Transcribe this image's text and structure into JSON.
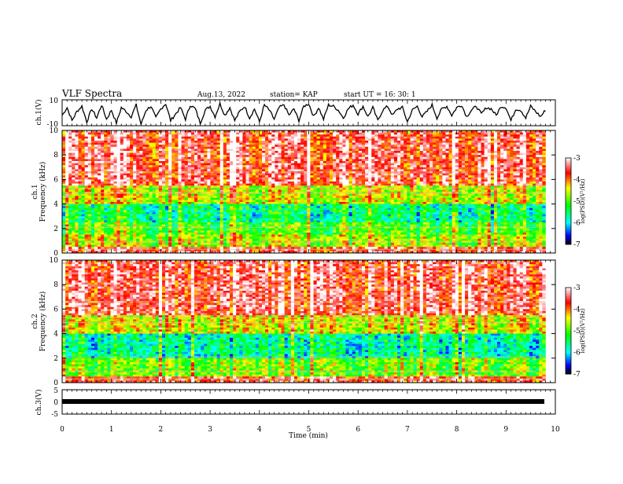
{
  "header": {
    "title": "VLF Spectra",
    "date": "Aug.13, 2022",
    "station": "station= KAP",
    "start": "start  UT =   16: 30: 1"
  },
  "chart_data": [
    {
      "type": "line",
      "panel": "ch1-waveform",
      "ylabel": "ch.1(V)",
      "ylim": [
        -10,
        10
      ],
      "y_tick_labels": [
        "10",
        "-10"
      ],
      "x_range_min": [
        0,
        9.8
      ],
      "series": [
        {
          "values_sampled_every_0_1_min": [
            -2,
            4,
            -6,
            1,
            5,
            -7,
            3,
            -4,
            6,
            -5,
            2,
            -8,
            4,
            1,
            -3,
            6,
            -9,
            2,
            5,
            -4,
            3,
            7,
            -6,
            -1,
            4,
            -5,
            6,
            3,
            -8,
            2,
            5,
            -3,
            7,
            -2,
            4,
            -6,
            1,
            5,
            -4,
            3,
            -7,
            6,
            2,
            -5,
            4,
            6,
            -2,
            3,
            -6,
            5,
            7,
            -3,
            4,
            -5,
            6,
            5,
            2,
            -4,
            3,
            6,
            -1,
            5,
            -3,
            4,
            -6,
            2,
            5,
            -2,
            3,
            4,
            -7,
            2,
            5,
            -3,
            1,
            6,
            -4,
            3,
            5,
            -2,
            4,
            6,
            -3,
            2,
            5,
            -1,
            4,
            3,
            -2,
            5,
            4,
            -6,
            3,
            2,
            -4,
            5,
            1,
            -3,
            2,
            -5,
            -6,
            -4
          ]
        }
      ]
    },
    {
      "type": "heatmap",
      "panel": "ch1-spectrogram",
      "ylabel": "ch.1\nFrequency (kHz)",
      "ylim": [
        0,
        10
      ],
      "y_tick_labels": [
        "0",
        "2",
        "4",
        "6",
        "8",
        "10"
      ],
      "x_range_min": [
        0,
        9.8
      ],
      "colorbar": {
        "label": "log(PSD)(V²/Hz)",
        "range": [
          -7,
          -3
        ],
        "tick_labels": [
          "-3",
          "-4",
          "-5",
          "-6",
          "-7"
        ]
      },
      "dominant_levels_by_band_kHz": [
        {
          "band": [
            0,
            0.5
          ],
          "level": -3.6
        },
        {
          "band": [
            0.5,
            1.5
          ],
          "level": -4.7
        },
        {
          "band": [
            1.5,
            2.5
          ],
          "level": -5.1
        },
        {
          "band": [
            2.5,
            4.0
          ],
          "level": -5.6
        },
        {
          "band": [
            4.0,
            5.5
          ],
          "level": -4.6
        },
        {
          "band": [
            5.5,
            10.0
          ],
          "level": -3.6
        }
      ]
    },
    {
      "type": "heatmap",
      "panel": "ch2-spectrogram",
      "ylabel": "ch.2\nFrequency (kHz)",
      "ylim": [
        0,
        10
      ],
      "y_tick_labels": [
        "0",
        "2",
        "4",
        "6",
        "8",
        "10"
      ],
      "x_range_min": [
        0,
        9.8
      ],
      "colorbar": {
        "label": "log(PSD)(V²/Hz)",
        "range": [
          -7,
          -3
        ],
        "tick_labels": [
          "-3",
          "-4",
          "-5",
          "-6",
          "-7"
        ]
      },
      "dominant_levels_by_band_kHz": [
        {
          "band": [
            0,
            0.5
          ],
          "level": -3.6
        },
        {
          "band": [
            0.5,
            2.0
          ],
          "level": -4.9
        },
        {
          "band": [
            2.0,
            4.0
          ],
          "level": -5.7
        },
        {
          "band": [
            4.0,
            5.5
          ],
          "level": -4.5
        },
        {
          "band": [
            5.5,
            10.0
          ],
          "level": -3.5
        }
      ]
    },
    {
      "type": "line",
      "panel": "ch3-waveform",
      "ylabel": "ch.3(V)",
      "ylim": [
        -5,
        5
      ],
      "y_tick_labels": [
        "5",
        "0",
        "-5"
      ],
      "x_range_min": [
        0,
        9.8
      ],
      "series": [
        {
          "values": [
            -0.8,
            -0.8
          ]
        }
      ]
    }
  ],
  "xaxis": {
    "label": "Time  (min)",
    "tick_labels": [
      "0",
      "1",
      "2",
      "3",
      "4",
      "5",
      "6",
      "7",
      "8",
      "9",
      "10"
    ],
    "range": [
      0,
      10
    ]
  },
  "colors": {
    "colormap": [
      "#000000",
      "#0000ff",
      "#00ffff",
      "#00ff00",
      "#ffff00",
      "#ff0000",
      "#ffffff"
    ],
    "trace": "#000000"
  }
}
